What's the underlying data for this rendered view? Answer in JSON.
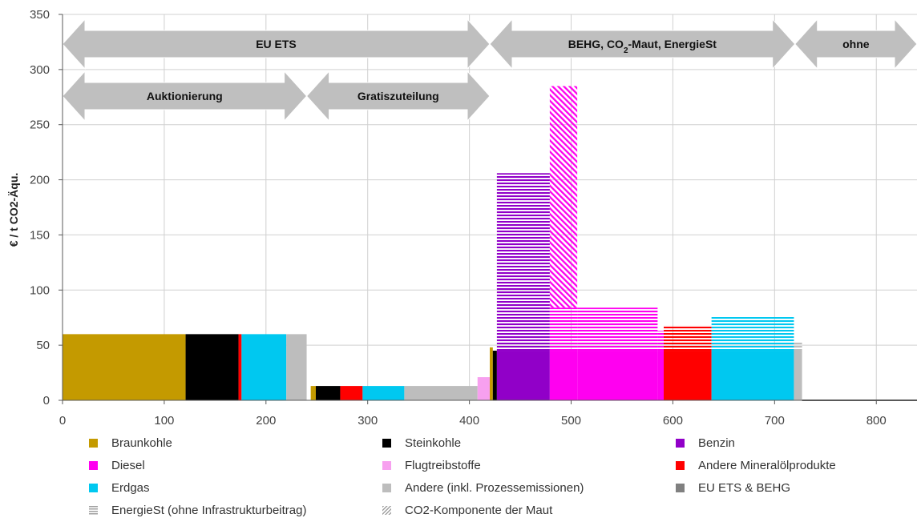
{
  "chart_data": {
    "type": "bar",
    "subtype": "variable-width stacked bar chart (price per t CO2 vs. cumulative emissions)",
    "ylabel": "€ / t CO2-Äqu.",
    "xlabel": "",
    "xlim": [
      0,
      840
    ],
    "ylim": [
      0,
      350
    ],
    "xticks": [
      "0",
      "100",
      "200",
      "300",
      "400",
      "500",
      "600",
      "700",
      "800"
    ],
    "yticks": [
      "0",
      "50",
      "100",
      "150",
      "200",
      "250",
      "300",
      "350"
    ],
    "grid": true,
    "legend_position": "bottom",
    "categories_colors": {
      "Braunkohle": "#c49a00",
      "Steinkohle": "#000000",
      "Benzin": "#9100c8",
      "Diesel": "#ff00f0",
      "Flugtreibstoffe": "#f7a0ef",
      "Andere Mineralölprodukte": "#ff0000",
      "Erdgas": "#00c8f0",
      "Andere (inkl. Prozessemissionen)": "#bdbdbd"
    },
    "arrows": [
      {
        "label": "EU ETS",
        "x_start": 0,
        "x_end": 420,
        "row": 1
      },
      {
        "label_pre": "BEHG, CO",
        "label_sub": "2",
        "label_post": "-Maut, EnergieSt",
        "x_start": 420,
        "x_end": 720,
        "row": 1
      },
      {
        "label": "ohne",
        "x_start": 720,
        "x_end": 840,
        "row": 1
      },
      {
        "label": "Auktionierung",
        "x_start": 0,
        "x_end": 240,
        "row": 2
      },
      {
        "label": "Gratiszuteilung",
        "x_start": 240,
        "x_end": 420,
        "row": 2
      }
    ],
    "segments": [
      {
        "category": "Braunkohle",
        "x0": 0,
        "x1": 121,
        "base": 60,
        "energiest": 0,
        "maut": 0
      },
      {
        "category": "Steinkohle",
        "x0": 121,
        "x1": 173,
        "base": 60,
        "energiest": 0,
        "maut": 0
      },
      {
        "category": "Andere Mineralölprodukte",
        "x0": 173,
        "x1": 176,
        "base": 60,
        "energiest": 0,
        "maut": 0
      },
      {
        "category": "Erdgas",
        "x0": 176,
        "x1": 220,
        "base": 60,
        "energiest": 0,
        "maut": 0
      },
      {
        "category": "Andere (inkl. Prozessemissionen)",
        "x0": 220,
        "x1": 240,
        "base": 60,
        "energiest": 0,
        "maut": 0
      },
      {
        "category": "Braunkohle",
        "x0": 244,
        "x1": 249,
        "base": 13,
        "energiest": 0,
        "maut": 0
      },
      {
        "category": "Steinkohle",
        "x0": 249,
        "x1": 273,
        "base": 13,
        "energiest": 0,
        "maut": 0
      },
      {
        "category": "Andere Mineralölprodukte",
        "x0": 273,
        "x1": 295,
        "base": 13,
        "energiest": 0,
        "maut": 0
      },
      {
        "category": "Erdgas",
        "x0": 295,
        "x1": 336,
        "base": 13,
        "energiest": 0,
        "maut": 0
      },
      {
        "category": "Andere (inkl. Prozessemissionen)",
        "x0": 336,
        "x1": 408,
        "base": 13,
        "energiest": 0,
        "maut": 0
      },
      {
        "category": "Flugtreibstoffe",
        "x0": 408,
        "x1": 420,
        "base": 21,
        "energiest": 0,
        "maut": 0
      },
      {
        "category": "Braunkohle",
        "x0": 420,
        "x1": 423,
        "base": 48,
        "energiest": 0,
        "maut": 0
      },
      {
        "category": "Steinkohle",
        "x0": 423,
        "x1": 427,
        "base": 45,
        "energiest": 0,
        "maut": 0
      },
      {
        "category": "Benzin",
        "x0": 427,
        "x1": 479,
        "base": 45,
        "energiest": 161,
        "maut": 0
      },
      {
        "category": "Diesel",
        "x0": 479,
        "x1": 506,
        "base": 45,
        "energiest": 39,
        "maut": 201
      },
      {
        "category": "Diesel",
        "x0": 506,
        "x1": 585,
        "base": 45,
        "energiest": 39,
        "maut": 0
      },
      {
        "category": "Diesel",
        "x0": 585,
        "x1": 591,
        "base": 45,
        "energiest": 18,
        "maut": 0
      },
      {
        "category": "Andere Mineralölprodukte",
        "x0": 591,
        "x1": 638,
        "base": 45,
        "energiest": 23,
        "maut": 0
      },
      {
        "category": "Erdgas",
        "x0": 638,
        "x1": 719,
        "base": 45,
        "energiest": 31,
        "maut": 0
      },
      {
        "category": "Andere (inkl. Prozessemissionen)",
        "x0": 719,
        "x1": 727,
        "base": 45,
        "energiest": 8,
        "maut": 0
      },
      {
        "category": "Andere (inkl. Prozessemissionen)",
        "x0": 727,
        "x1": 840,
        "base": 0,
        "energiest": 0,
        "maut": 0
      }
    ]
  },
  "legend": {
    "items": [
      {
        "label": "Braunkohle",
        "color": "#c49a00",
        "pattern": "solid"
      },
      {
        "label": "Steinkohle",
        "color": "#000000",
        "pattern": "solid"
      },
      {
        "label": "Benzin",
        "color": "#9100c8",
        "pattern": "solid"
      },
      {
        "label": "Diesel",
        "color": "#ff00f0",
        "pattern": "solid"
      },
      {
        "label": "Flugtreibstoffe",
        "color": "#f7a0ef",
        "pattern": "solid"
      },
      {
        "label": "Andere Mineralölprodukte",
        "color": "#ff0000",
        "pattern": "solid"
      },
      {
        "label": "Erdgas",
        "color": "#00c8f0",
        "pattern": "solid"
      },
      {
        "label": "Andere (inkl. Prozessemissionen)",
        "color": "#bdbdbd",
        "pattern": "solid"
      },
      {
        "label": "EU ETS & BEHG",
        "color": "#808080",
        "pattern": "solid"
      },
      {
        "label": "EnergieSt (ohne Infrastrukturbeitrag)",
        "color": "#a0a0a0",
        "pattern": "horizontal-lines"
      },
      {
        "label": "CO2-Komponente der Maut",
        "color": "#a0a0a0",
        "pattern": "diagonal-lines"
      }
    ]
  }
}
